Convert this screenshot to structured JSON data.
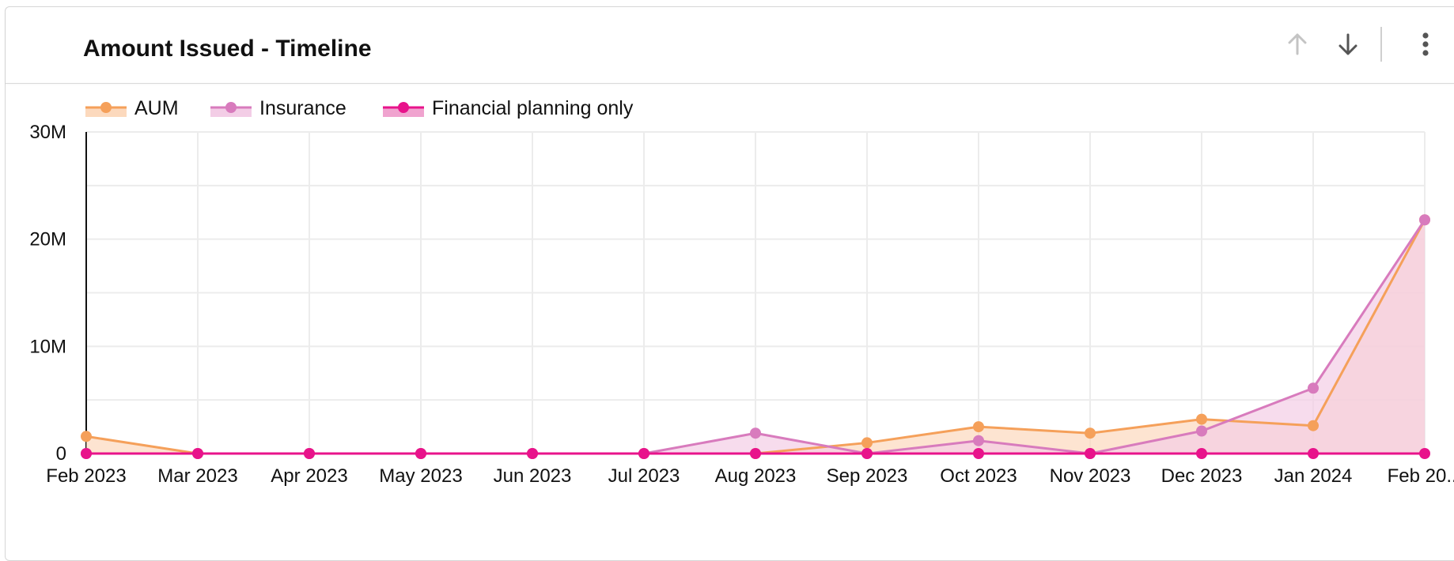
{
  "card": {
    "title": "Amount Issued - Timeline",
    "actions": [
      "arrow-up-icon",
      "arrow-down-icon",
      "more-vert-icon"
    ]
  },
  "chart_data": {
    "type": "area",
    "categories": [
      "Feb 2023",
      "Mar 2023",
      "Apr 2023",
      "May 2023",
      "Jun 2023",
      "Jul 2023",
      "Aug 2023",
      "Sep 2023",
      "Oct 2023",
      "Nov 2023",
      "Dec 2023",
      "Jan 2024",
      "Feb 20..."
    ],
    "yticks": [
      "0",
      "10M",
      "20M",
      "30M"
    ],
    "ylim": [
      0,
      30000000
    ],
    "grid": true,
    "legend_position": "top-left",
    "series": [
      {
        "name": "AUM",
        "color": "#f5a05a",
        "fill": "#fcd9bd",
        "values": [
          1600000,
          0,
          0,
          0,
          0,
          0,
          0,
          1000000,
          2500000,
          1900000,
          3200000,
          2600000,
          21800000
        ]
      },
      {
        "name": "Insurance",
        "color": "#d87bbd",
        "fill": "#f3cde6",
        "values": [
          0,
          0,
          0,
          0,
          0,
          0,
          1900000,
          0,
          1200000,
          0,
          2100000,
          6100000,
          21800000
        ]
      },
      {
        "name": "Financial planning only",
        "color": "#e8138b",
        "fill": "#f0a3cf",
        "values": [
          0,
          0,
          0,
          0,
          0,
          0,
          0,
          0,
          0,
          0,
          0,
          0,
          0
        ]
      }
    ]
  }
}
